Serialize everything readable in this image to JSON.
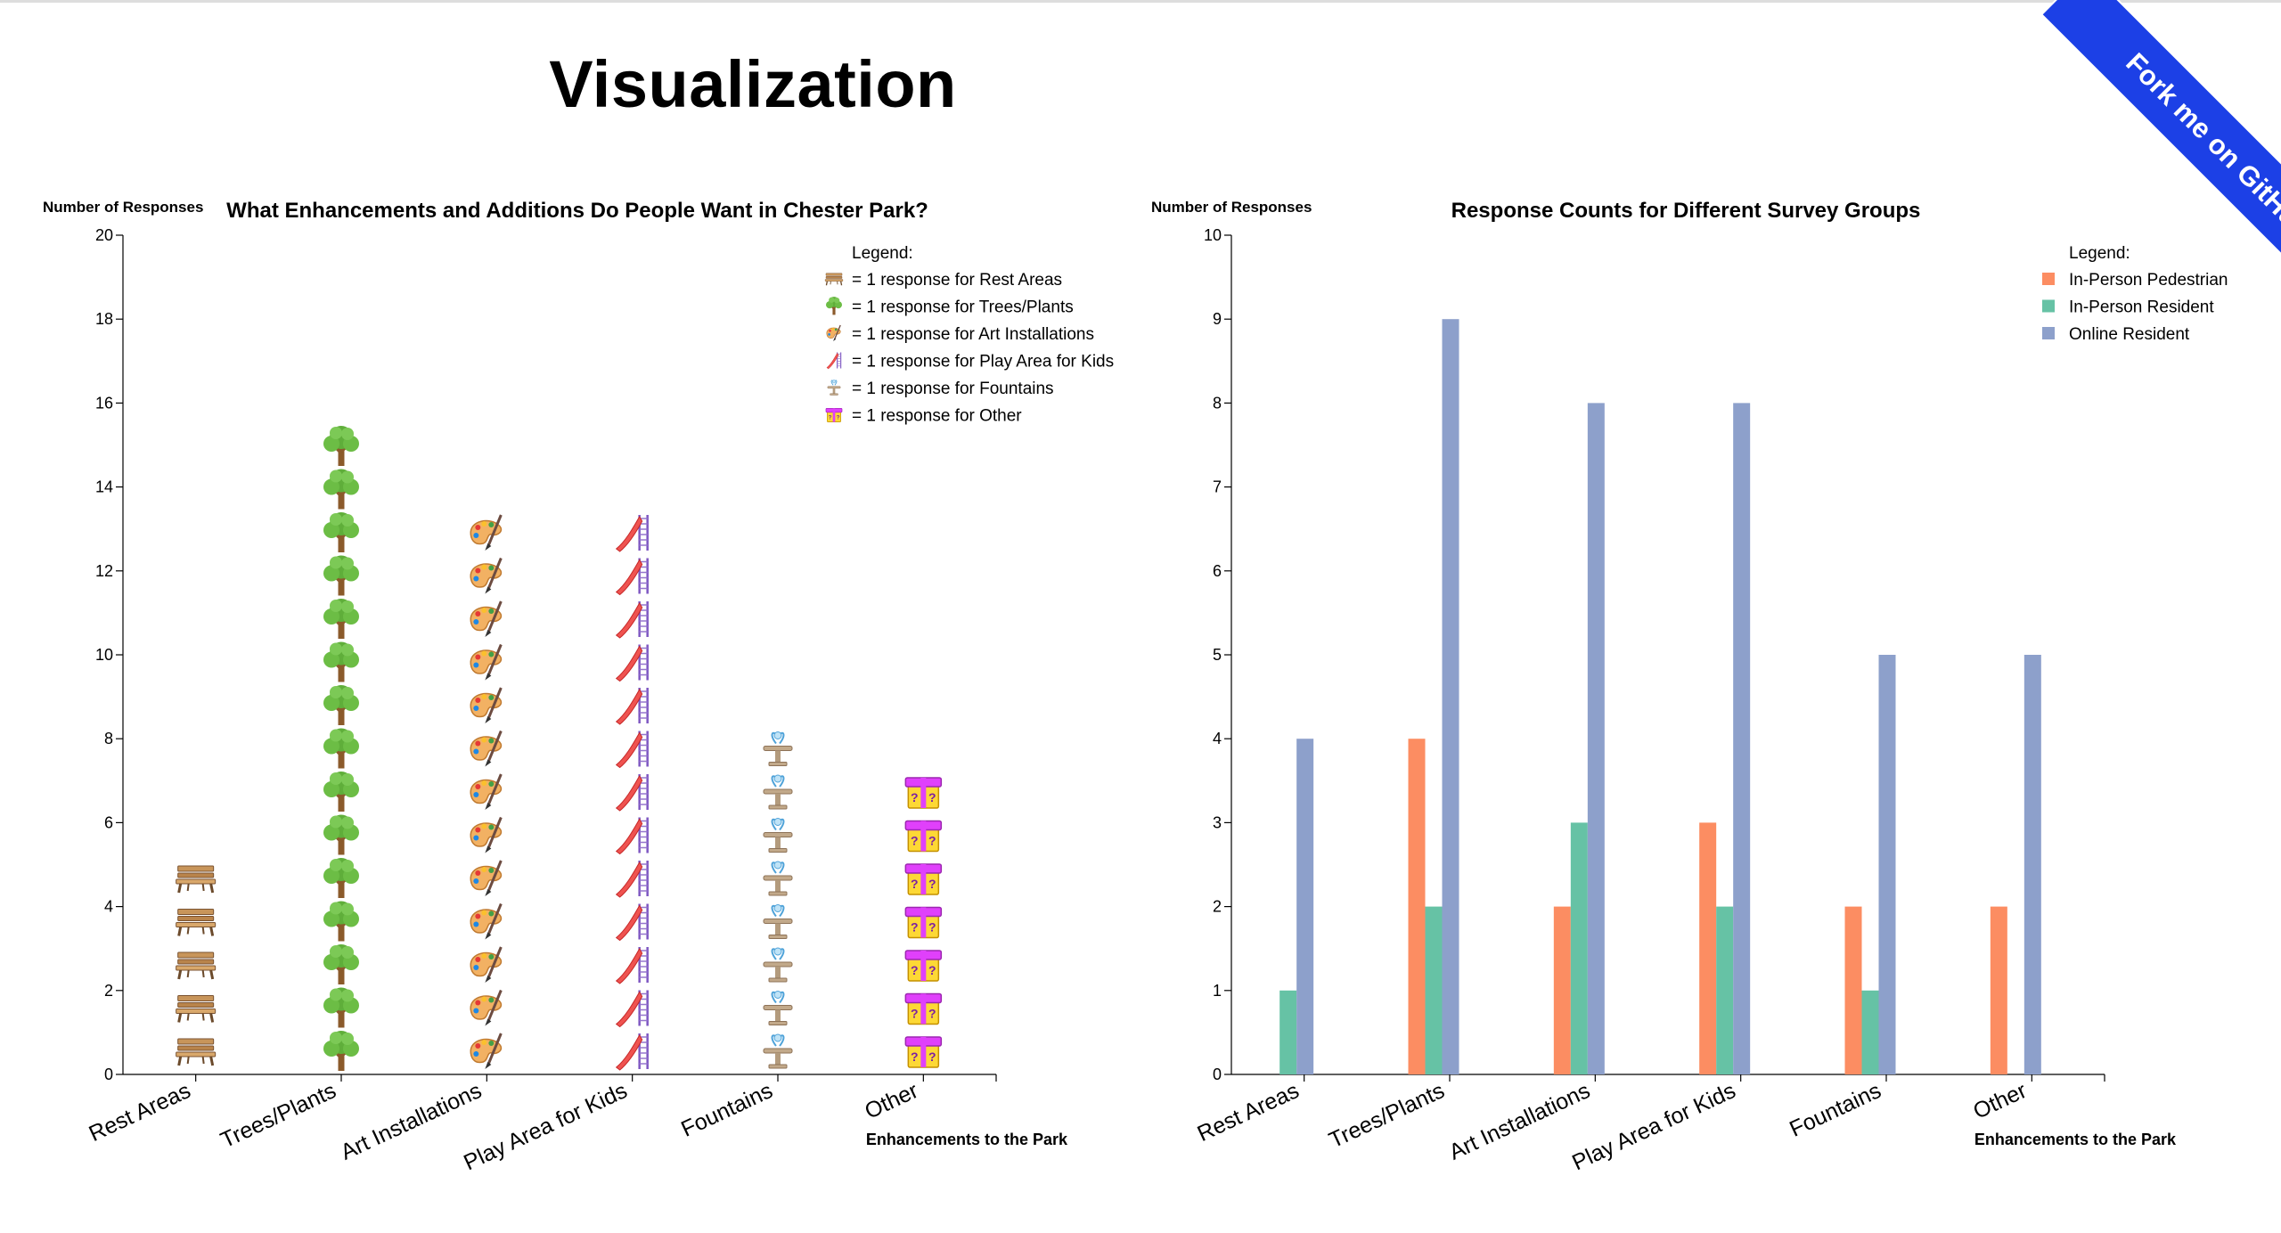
{
  "page": {
    "title": "Visualization",
    "fork_ribbon": "Fork me on GitHub"
  },
  "colors": {
    "pedestrian": "#fc8d62",
    "resident": "#66c2a5",
    "online": "#8da0cb",
    "axis": "#000000"
  },
  "chart_data": [
    {
      "type": "bar",
      "style": "pictograph",
      "title": "What Enhancements and Additions Do People Want in Chester Park?",
      "xlabel": "Enhancements to the Park",
      "ylabel": "Number of Responses",
      "ylim": [
        0,
        20
      ],
      "yticks": [
        0,
        2,
        4,
        6,
        8,
        10,
        12,
        14,
        16,
        18,
        20
      ],
      "categories": [
        "Rest Areas",
        "Trees/Plants",
        "Art Installations",
        "Play Area for Kids",
        "Fountains",
        "Other"
      ],
      "values": [
        5,
        15,
        13,
        13,
        8,
        7
      ],
      "icons": [
        "bench-icon",
        "tree-icon",
        "palette-icon",
        "slide-icon",
        "fountain-icon",
        "mystery-box-icon"
      ],
      "legend": {
        "title": "Legend:",
        "placement": "top-right",
        "entries": [
          {
            "icon": "bench-icon",
            "label": "= 1 response for Rest Areas"
          },
          {
            "icon": "tree-icon",
            "label": "= 1 response for Trees/Plants"
          },
          {
            "icon": "palette-icon",
            "label": "= 1 response for Art Installations"
          },
          {
            "icon": "slide-icon",
            "label": "= 1 response for Play Area for Kids"
          },
          {
            "icon": "fountain-icon",
            "label": "= 1 response for Fountains"
          },
          {
            "icon": "mystery-box-icon",
            "label": "= 1 response for Other"
          }
        ]
      }
    },
    {
      "type": "bar",
      "style": "grouped",
      "title": "Response Counts for Different Survey Groups",
      "xlabel": "Enhancements to the Park",
      "ylabel": "Number of Responses",
      "ylim": [
        0,
        10
      ],
      "yticks": [
        0,
        1,
        2,
        3,
        4,
        5,
        6,
        7,
        8,
        9,
        10
      ],
      "categories": [
        "Rest Areas",
        "Trees/Plants",
        "Art Installations",
        "Play Area for Kids",
        "Fountains",
        "Other"
      ],
      "series": [
        {
          "name": "In-Person Pedestrian",
          "color": "#fc8d62",
          "values": [
            0,
            4,
            2,
            3,
            2,
            2
          ]
        },
        {
          "name": "In-Person Resident",
          "color": "#66c2a5",
          "values": [
            1,
            2,
            3,
            2,
            1,
            0
          ]
        },
        {
          "name": "Online Resident",
          "color": "#8da0cb",
          "values": [
            4,
            9,
            8,
            8,
            5,
            5
          ]
        }
      ],
      "legend": {
        "title": "Legend:",
        "placement": "top-right"
      }
    }
  ]
}
